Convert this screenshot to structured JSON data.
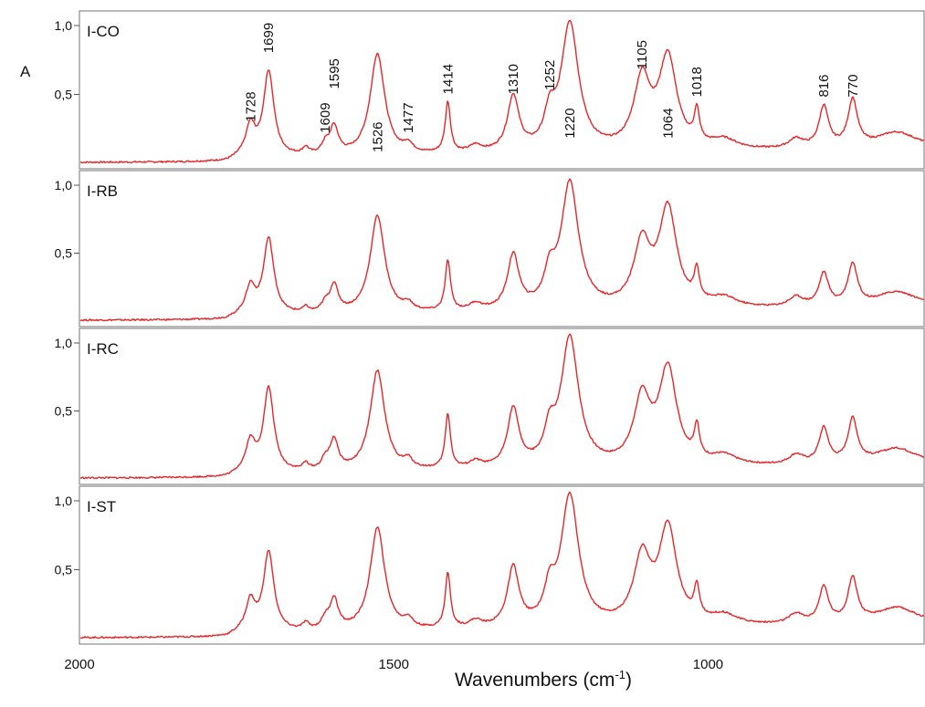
{
  "chart_data": {
    "type": "line",
    "xlabel": "Wavenumbers (cm",
    "xlabel_sup": "-1",
    "xlabel_close": ")",
    "ylabel": "A",
    "x_reversed": true,
    "xlim": [
      2000,
      655
    ],
    "x_ticks": [
      {
        "value": 2000,
        "label": "2000"
      },
      {
        "value": 1500,
        "label": "1500"
      },
      {
        "value": 1000,
        "label": "1000"
      }
    ],
    "ylim": [
      0,
      1.0
    ],
    "y_ticks": [
      {
        "value": 0.5,
        "label": "0,5"
      },
      {
        "value": 1.0,
        "label": "1,0"
      }
    ],
    "line_color": "#e8262a",
    "grid": false,
    "panels": [
      {
        "name": "I-CO",
        "peaks": [
          {
            "pos": 1728,
            "h": 0.22,
            "w": 9
          },
          {
            "pos": 1699,
            "h": 0.62,
            "w": 10
          },
          {
            "pos": 1640,
            "h": 0.05,
            "w": 6
          },
          {
            "pos": 1609,
            "h": 0.07,
            "w": 7
          },
          {
            "pos": 1595,
            "h": 0.2,
            "w": 8
          },
          {
            "pos": 1526,
            "h": 0.74,
            "w": 14
          },
          {
            "pos": 1477,
            "h": 0.06,
            "w": 8
          },
          {
            "pos": 1414,
            "h": 0.37,
            "w": 5
          },
          {
            "pos": 1370,
            "h": 0.05,
            "w": 12
          },
          {
            "pos": 1310,
            "h": 0.4,
            "w": 11
          },
          {
            "pos": 1252,
            "h": 0.22,
            "w": 10
          },
          {
            "pos": 1220,
            "h": 0.93,
            "w": 17
          },
          {
            "pos": 1105,
            "h": 0.5,
            "w": 16
          },
          {
            "pos": 1064,
            "h": 0.66,
            "w": 17
          },
          {
            "pos": 1018,
            "h": 0.23,
            "w": 5
          },
          {
            "pos": 975,
            "h": 0.07,
            "w": 25
          },
          {
            "pos": 860,
            "h": 0.07,
            "w": 14
          },
          {
            "pos": 816,
            "h": 0.3,
            "w": 9
          },
          {
            "pos": 770,
            "h": 0.34,
            "w": 9
          },
          {
            "pos": 700,
            "h": 0.12,
            "w": 40
          }
        ],
        "peak_labels": [
          {
            "value": 1728,
            "label": "1728",
            "level": 0.3
          },
          {
            "value": 1699,
            "label": "1699",
            "level": 0.8
          },
          {
            "value": 1609,
            "label": "1609",
            "level": 0.22
          },
          {
            "value": 1595,
            "label": "1595",
            "level": 0.54
          },
          {
            "value": 1526,
            "label": "1526",
            "level": 0.08
          },
          {
            "value": 1477,
            "label": "1477",
            "level": 0.22
          },
          {
            "value": 1414,
            "label": "1414",
            "level": 0.5
          },
          {
            "value": 1310,
            "label": "1310",
            "level": 0.5
          },
          {
            "value": 1252,
            "label": "1252",
            "level": 0.53
          },
          {
            "value": 1220,
            "label": "1220",
            "level": 0.18
          },
          {
            "value": 1105,
            "label": "1105",
            "level": 0.68
          },
          {
            "value": 1064,
            "label": "1064",
            "level": 0.18
          },
          {
            "value": 1018,
            "label": "1018",
            "level": 0.48
          },
          {
            "value": 816,
            "label": "816",
            "level": 0.48
          },
          {
            "value": 770,
            "label": "770",
            "level": 0.48
          }
        ]
      },
      {
        "name": "I-RB",
        "peaks": [
          {
            "pos": 1728,
            "h": 0.2,
            "w": 9
          },
          {
            "pos": 1699,
            "h": 0.56,
            "w": 10
          },
          {
            "pos": 1640,
            "h": 0.04,
            "w": 6
          },
          {
            "pos": 1609,
            "h": 0.06,
            "w": 7
          },
          {
            "pos": 1595,
            "h": 0.2,
            "w": 8
          },
          {
            "pos": 1526,
            "h": 0.72,
            "w": 14
          },
          {
            "pos": 1477,
            "h": 0.05,
            "w": 8
          },
          {
            "pos": 1414,
            "h": 0.37,
            "w": 5
          },
          {
            "pos": 1370,
            "h": 0.05,
            "w": 12
          },
          {
            "pos": 1310,
            "h": 0.4,
            "w": 11
          },
          {
            "pos": 1252,
            "h": 0.22,
            "w": 10
          },
          {
            "pos": 1220,
            "h": 0.93,
            "w": 17
          },
          {
            "pos": 1105,
            "h": 0.46,
            "w": 16
          },
          {
            "pos": 1064,
            "h": 0.72,
            "w": 17
          },
          {
            "pos": 1018,
            "h": 0.22,
            "w": 5
          },
          {
            "pos": 975,
            "h": 0.07,
            "w": 25
          },
          {
            "pos": 860,
            "h": 0.07,
            "w": 14
          },
          {
            "pos": 816,
            "h": 0.24,
            "w": 9
          },
          {
            "pos": 770,
            "h": 0.3,
            "w": 9
          },
          {
            "pos": 700,
            "h": 0.11,
            "w": 40
          }
        ]
      },
      {
        "name": "I-RC",
        "peaks": [
          {
            "pos": 1728,
            "h": 0.22,
            "w": 9
          },
          {
            "pos": 1699,
            "h": 0.62,
            "w": 10
          },
          {
            "pos": 1640,
            "h": 0.05,
            "w": 6
          },
          {
            "pos": 1609,
            "h": 0.07,
            "w": 7
          },
          {
            "pos": 1595,
            "h": 0.22,
            "w": 8
          },
          {
            "pos": 1526,
            "h": 0.74,
            "w": 14
          },
          {
            "pos": 1477,
            "h": 0.06,
            "w": 8
          },
          {
            "pos": 1414,
            "h": 0.4,
            "w": 5
          },
          {
            "pos": 1370,
            "h": 0.05,
            "w": 12
          },
          {
            "pos": 1310,
            "h": 0.43,
            "w": 11
          },
          {
            "pos": 1252,
            "h": 0.22,
            "w": 10
          },
          {
            "pos": 1220,
            "h": 0.95,
            "w": 17
          },
          {
            "pos": 1105,
            "h": 0.48,
            "w": 16
          },
          {
            "pos": 1064,
            "h": 0.7,
            "w": 17
          },
          {
            "pos": 1018,
            "h": 0.23,
            "w": 5
          },
          {
            "pos": 975,
            "h": 0.07,
            "w": 25
          },
          {
            "pos": 860,
            "h": 0.07,
            "w": 14
          },
          {
            "pos": 816,
            "h": 0.26,
            "w": 9
          },
          {
            "pos": 770,
            "h": 0.32,
            "w": 9
          },
          {
            "pos": 700,
            "h": 0.12,
            "w": 40
          }
        ]
      },
      {
        "name": "I-ST",
        "peaks": [
          {
            "pos": 1728,
            "h": 0.22,
            "w": 9
          },
          {
            "pos": 1699,
            "h": 0.58,
            "w": 10
          },
          {
            "pos": 1640,
            "h": 0.05,
            "w": 6
          },
          {
            "pos": 1609,
            "h": 0.07,
            "w": 7
          },
          {
            "pos": 1595,
            "h": 0.22,
            "w": 8
          },
          {
            "pos": 1526,
            "h": 0.75,
            "w": 14
          },
          {
            "pos": 1477,
            "h": 0.06,
            "w": 8
          },
          {
            "pos": 1414,
            "h": 0.4,
            "w": 5
          },
          {
            "pos": 1370,
            "h": 0.05,
            "w": 12
          },
          {
            "pos": 1310,
            "h": 0.43,
            "w": 11
          },
          {
            "pos": 1252,
            "h": 0.22,
            "w": 10
          },
          {
            "pos": 1220,
            "h": 0.95,
            "w": 17
          },
          {
            "pos": 1105,
            "h": 0.48,
            "w": 16
          },
          {
            "pos": 1064,
            "h": 0.7,
            "w": 17
          },
          {
            "pos": 1018,
            "h": 0.22,
            "w": 5
          },
          {
            "pos": 975,
            "h": 0.07,
            "w": 25
          },
          {
            "pos": 860,
            "h": 0.07,
            "w": 14
          },
          {
            "pos": 816,
            "h": 0.26,
            "w": 9
          },
          {
            "pos": 770,
            "h": 0.32,
            "w": 9
          },
          {
            "pos": 700,
            "h": 0.12,
            "w": 40
          }
        ]
      }
    ]
  }
}
